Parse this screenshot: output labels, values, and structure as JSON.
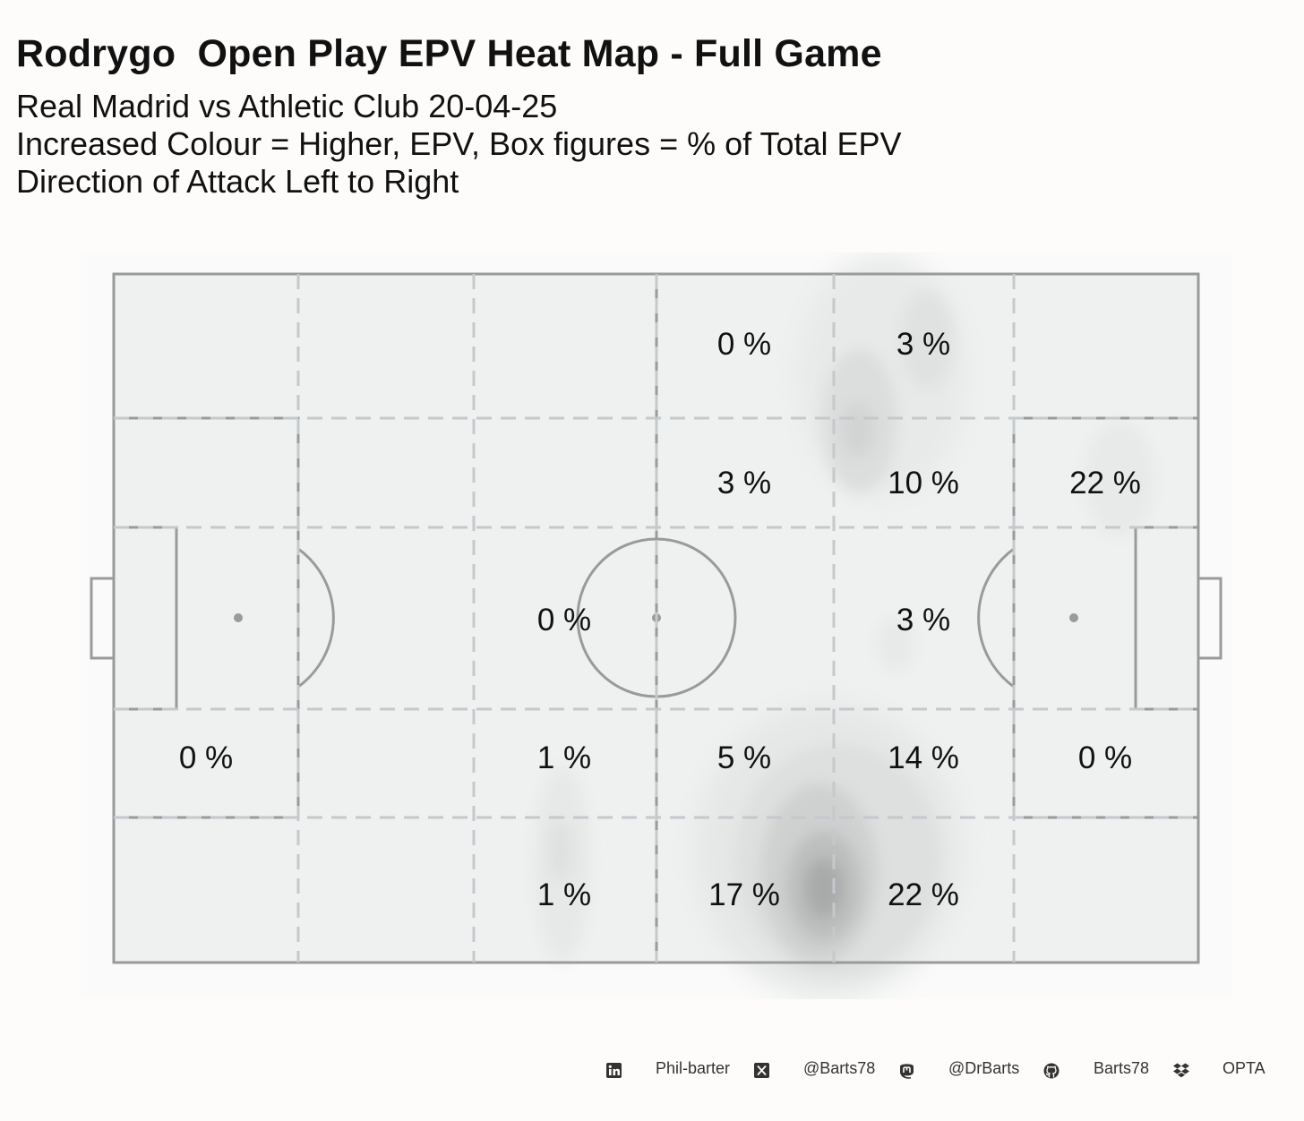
{
  "title": "Rodrygo  Open Play EPV Heat Map - Full Game",
  "subtitle_lines": [
    "Real Madrid vs Athletic Club 20-04-25",
    "Increased Colour = Higher, EPV, Box figures = % of Total EPV",
    "Direction of Attack Left to Right"
  ],
  "footer": {
    "linkedin": "Phil-barter",
    "x": "@Barts78",
    "mastodon": "@DrBarts",
    "github": "Barts78",
    "source": "OPTA"
  },
  "footer_icons": [
    "linkedin-icon",
    "x-icon",
    "mastodon-icon",
    "github-icon",
    "dropbox-icon"
  ],
  "colors": {
    "background": "#fdfcfb",
    "pitch": "#eff0f0",
    "lines": "#9a9a9a",
    "grid": "#c4c9cc"
  },
  "chart_data": {
    "type": "heatmap",
    "description_unit": "% of Total EPV",
    "zones": [
      {
        "label": "0 %",
        "value": 0,
        "zone": "top-middle-right"
      },
      {
        "label": "3 %",
        "value": 3,
        "zone": "top-final-third"
      },
      {
        "label": "3 %",
        "value": 3,
        "zone": "upper-middle-right"
      },
      {
        "label": "10 %",
        "value": 10,
        "zone": "upper-final-third"
      },
      {
        "label": "22 %",
        "value": 22,
        "zone": "upper-right-box"
      },
      {
        "label": "0 %",
        "value": 0,
        "zone": "center-middle-left"
      },
      {
        "label": "3 %",
        "value": 3,
        "zone": "center-final-third"
      },
      {
        "label": "0 %",
        "value": 0,
        "zone": "lower-left-box"
      },
      {
        "label": "1 %",
        "value": 1,
        "zone": "lower-middle-left"
      },
      {
        "label": "5 %",
        "value": 5,
        "zone": "lower-middle-right"
      },
      {
        "label": "14 %",
        "value": 14,
        "zone": "lower-final-third"
      },
      {
        "label": "0 %",
        "value": 0,
        "zone": "lower-right-box"
      },
      {
        "label": "1 %",
        "value": 1,
        "zone": "bottom-middle-left"
      },
      {
        "label": "17 %",
        "value": 17,
        "zone": "bottom-middle-right"
      },
      {
        "label": "22 %",
        "value": 22,
        "zone": "bottom-final-third"
      }
    ],
    "attack_direction": "left to right"
  }
}
